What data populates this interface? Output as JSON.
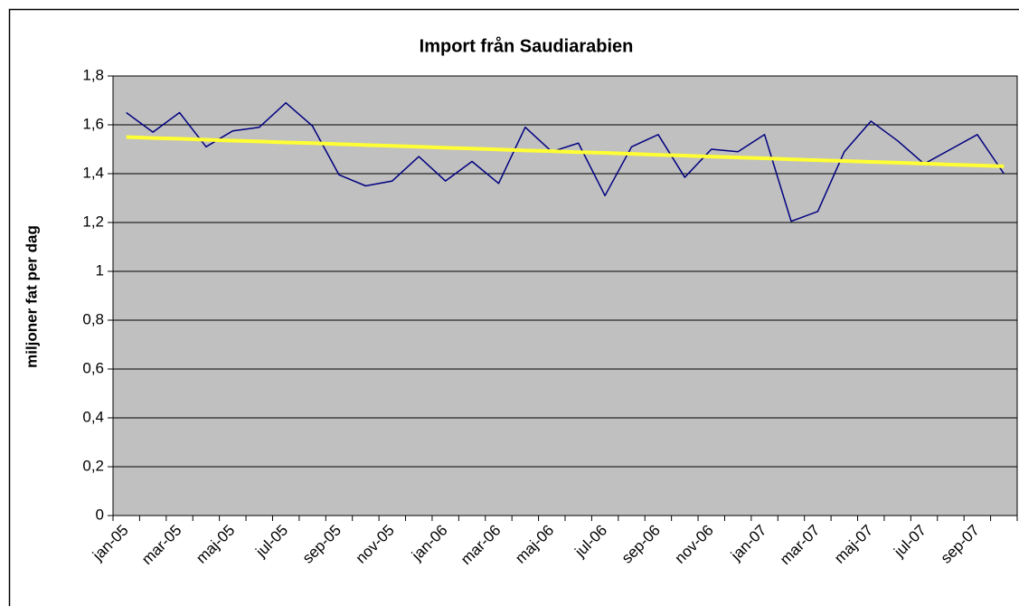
{
  "chart_data": {
    "type": "line",
    "title": "Import från Saudiarabien",
    "y_label": "miljoner fat per dag",
    "categories": [
      "jan-05",
      null,
      "mar-05",
      null,
      "maj-05",
      null,
      "jul-05",
      null,
      "sep-05",
      null,
      "nov-05",
      null,
      "jan-06",
      null,
      "mar-06",
      null,
      "maj-06",
      null,
      "jul-06",
      null,
      "sep-06",
      null,
      "nov-06",
      null,
      "jan-07",
      null,
      "mar-07",
      null,
      "maj-07",
      null,
      "jul-07",
      null,
      "sep-07",
      null
    ],
    "series": [
      {
        "color": "#000080",
        "width": 1.5,
        "values": [
          1.65,
          1.57,
          1.65,
          1.51,
          1.575,
          1.59,
          1.69,
          1.595,
          1.395,
          1.35,
          1.37,
          1.47,
          1.37,
          1.45,
          1.36,
          1.59,
          1.49,
          1.525,
          1.31,
          1.51,
          1.56,
          1.385,
          1.5,
          1.49,
          1.56,
          1.205,
          1.245,
          1.49,
          1.615,
          1.535,
          1.44,
          1.5,
          1.56,
          1.4
        ]
      },
      {
        "color": "#ffff33",
        "width": 4,
        "values": [
          1.55,
          1.546,
          1.543,
          1.539,
          1.535,
          1.532,
          1.528,
          1.525,
          1.521,
          1.517,
          1.514,
          1.51,
          1.506,
          1.503,
          1.499,
          1.495,
          1.492,
          1.488,
          1.485,
          1.481,
          1.477,
          1.474,
          1.47,
          1.466,
          1.463,
          1.459,
          1.455,
          1.452,
          1.448,
          1.445,
          1.441,
          1.437,
          1.434,
          1.43
        ]
      }
    ],
    "ylim": [
      0,
      1.8
    ],
    "yticks": [
      0,
      {
        "value": 0.2,
        "label": "0,2"
      },
      {
        "value": 0.4,
        "label": "0,4"
      },
      {
        "value": 0.6,
        "label": "0,6"
      },
      {
        "value": 0.8,
        "label": "0,8"
      },
      1,
      {
        "value": 1.2,
        "label": "1,2"
      },
      {
        "value": 1.4,
        "label": "1,4"
      },
      {
        "value": 1.6,
        "label": "1,6"
      },
      {
        "value": 1.8,
        "label": "1,8"
      }
    ],
    "grid": true,
    "plot_background": "#c0c0c0"
  }
}
